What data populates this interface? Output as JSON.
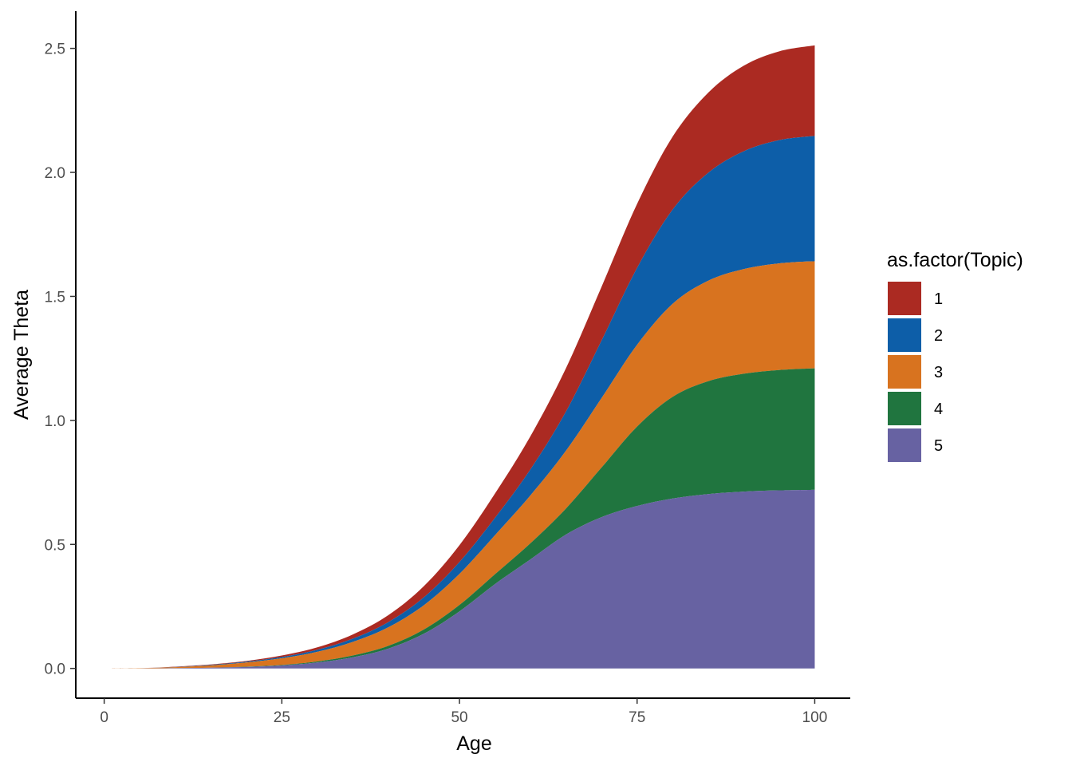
{
  "chart_data": {
    "type": "area",
    "stacked": true,
    "xlabel": "Age",
    "ylabel": "Average Theta",
    "xlim": [
      -4,
      105
    ],
    "ylim": [
      -0.12,
      2.65
    ],
    "x_ticks": [
      0,
      25,
      50,
      75,
      100
    ],
    "x_tick_labels": [
      "0",
      "25",
      "50",
      "75",
      "100"
    ],
    "y_ticks": [
      0.0,
      0.5,
      1.0,
      1.5,
      2.0,
      2.5
    ],
    "y_tick_labels": [
      "0.0",
      "0.5",
      "1.0",
      "1.5",
      "2.0",
      "2.5"
    ],
    "grid": false,
    "legend": {
      "title": "as.factor(Topic)",
      "position": "right"
    },
    "x": [
      1,
      5,
      10,
      15,
      20,
      25,
      30,
      35,
      40,
      45,
      50,
      55,
      60,
      65,
      70,
      75,
      80,
      85,
      90,
      95,
      100
    ],
    "series": [
      {
        "name": "1",
        "color": "#AB2A22",
        "values": [
          0.0,
          0.0,
          0.001,
          0.002,
          0.003,
          0.006,
          0.01,
          0.017,
          0.028,
          0.045,
          0.068,
          0.098,
          0.134,
          0.175,
          0.217,
          0.258,
          0.294,
          0.323,
          0.345,
          0.358,
          0.365
        ]
      },
      {
        "name": "2",
        "color": "#0D5EA8",
        "values": [
          0.0,
          0.0,
          0.001,
          0.002,
          0.003,
          0.005,
          0.008,
          0.013,
          0.021,
          0.032,
          0.048,
          0.07,
          0.105,
          0.158,
          0.232,
          0.31,
          0.38,
          0.435,
          0.475,
          0.497,
          0.505
        ]
      },
      {
        "name": "3",
        "color": "#D8731F",
        "values": [
          0.0,
          0.001,
          0.004,
          0.009,
          0.017,
          0.027,
          0.039,
          0.055,
          0.075,
          0.098,
          0.125,
          0.157,
          0.193,
          0.233,
          0.28,
          0.33,
          0.375,
          0.405,
          0.422,
          0.43,
          0.432
        ]
      },
      {
        "name": "4",
        "color": "#20753F",
        "values": [
          0.0,
          0.0,
          0.0,
          0.0,
          0.001,
          0.002,
          0.004,
          0.007,
          0.011,
          0.017,
          0.026,
          0.04,
          0.065,
          0.105,
          0.2,
          0.32,
          0.41,
          0.455,
          0.475,
          0.485,
          0.49
        ]
      },
      {
        "name": "5",
        "color": "#6762A2",
        "values": [
          0.0,
          0.0,
          0.001,
          0.003,
          0.006,
          0.012,
          0.024,
          0.045,
          0.08,
          0.14,
          0.23,
          0.34,
          0.44,
          0.54,
          0.61,
          0.655,
          0.685,
          0.703,
          0.713,
          0.718,
          0.72
        ]
      }
    ]
  }
}
